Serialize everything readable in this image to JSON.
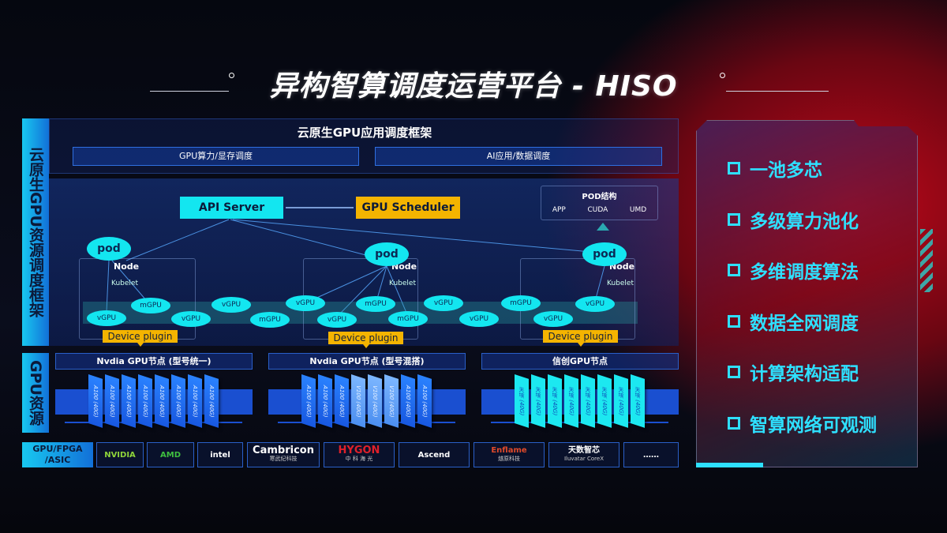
{
  "title": "异构智算调度运营平台 - HISO",
  "left_labels": {
    "top": "云原生GPU资源调度框架",
    "bottom": "GPU资源",
    "vendors": "GPU/FPGA /ASIC"
  },
  "framework": {
    "title": "云原生GPU应用调度框架",
    "sub": [
      "GPU算力/显存调度",
      "AI应用/数据调度"
    ]
  },
  "api_server": "API Server",
  "gpu_scheduler": "GPU Scheduler",
  "pod_structure": {
    "title": "POD结构",
    "items": [
      "APP",
      "CUDA",
      "UMD"
    ]
  },
  "pod_label": "pod",
  "node_label": "Node",
  "kubelet_label": "Kubelet",
  "device_plugin": "Device plugin",
  "virtual_gpus": [
    "vGPU",
    "mGPU",
    "vGPU",
    "vGPU",
    "mGPU",
    "vGPU",
    "vGPU",
    "mGPU",
    "mGPU",
    "vGPU",
    "vGPU",
    "mGPU",
    "vGPU",
    "vGPU"
  ],
  "gpu_nodes": [
    {
      "title": "Nvdia GPU节点 (型号统一)",
      "cards": [
        "A100 (40G)",
        "A100 (40G)",
        "A100 (40G)",
        "A100 (40G)",
        "A100 (40G)",
        "A100 (40G)",
        "A100 (40G)",
        "A100 (40G)"
      ]
    },
    {
      "title": "Nvdia GPU节点 (型号混搭)",
      "cards": [
        "A100 (40G)",
        "A100 (40G)",
        "A100 (40G)",
        "V100 (40G)",
        "V100 (40G)",
        "V100 (40G)",
        "A100 (40G)",
        "A100 (40G)"
      ]
    },
    {
      "title": "信创GPU节点",
      "cards": [
        "天垓 (40G)",
        "天垓 (40G)",
        "天垓 (40G)",
        "天垓 (40G)",
        "天垓 (40G)",
        "天垓 (40G)",
        "天垓 (40G)",
        "天垓 (40G)"
      ]
    }
  ],
  "vendors": [
    {
      "name": "NVIDIA"
    },
    {
      "name": "AMD"
    },
    {
      "name": "intel"
    },
    {
      "name": "Cambricon",
      "sub": "寒武纪科技"
    },
    {
      "name": "HYGON",
      "sub": "中 科 海 光"
    },
    {
      "name": "Ascend"
    },
    {
      "name": "Enflame",
      "sub": "燧原科技"
    },
    {
      "name": "天数智芯",
      "sub": "Iluvatar CoreX"
    },
    {
      "name": "……"
    }
  ],
  "features": [
    "一池多芯",
    "多级算力池化",
    "多维调度算法",
    "数据全网调度",
    "计算架构适配",
    "智算网络可观测"
  ],
  "colors": {
    "cyan": "#13e6f0",
    "orange": "#f4b400",
    "blue": "#1a4fd0",
    "feature": "#2ee0ff"
  }
}
